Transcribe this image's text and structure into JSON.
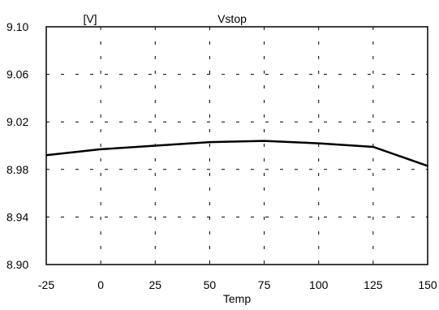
{
  "chart_data": {
    "type": "line",
    "title": "Vstop",
    "ylabel": "[V]",
    "xlabel": "Temp",
    "x": [
      -25,
      0,
      25,
      50,
      75,
      100,
      125,
      150
    ],
    "series": [
      {
        "values": [
          8.992,
          8.997,
          9.0,
          9.003,
          9.004,
          9.002,
          8.999,
          8.983
        ],
        "color": "#000000"
      }
    ],
    "xlim": [
      -25,
      150
    ],
    "ylim": [
      8.9,
      9.1
    ],
    "xticks": [
      "-25",
      "0",
      "25",
      "50",
      "75",
      "100",
      "125",
      "150"
    ],
    "yticks": [
      "9.10",
      "9.06",
      "9.02",
      "8.98",
      "8.94",
      "8.90"
    ],
    "grid": true,
    "grid_style": "dashed"
  }
}
